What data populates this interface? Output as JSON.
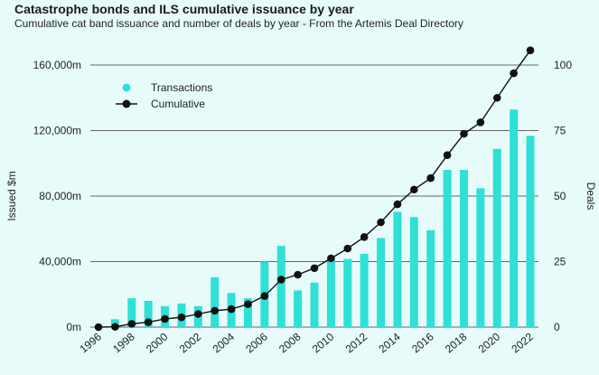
{
  "chart_data": {
    "type": "bar",
    "title": "Catastrophe bonds and ILS cumulative issuance by year",
    "subtitle": "Cumulative cat band issuance and number of deals by year - From the Artemis Deal Directory",
    "ylabel_left": "Issued $m",
    "ylabel_right": "Deals",
    "ylim_left": [
      0,
      160000
    ],
    "ylim_right": [
      0,
      100
    ],
    "yticks_left": [
      "0m",
      "40,000m",
      "80,000m",
      "120,000m",
      "160,000m"
    ],
    "yticks_right": [
      "0",
      "25",
      "50",
      "75",
      "100"
    ],
    "legend_position": "top-left",
    "grid": true,
    "x": [
      1996,
      1997,
      1998,
      1999,
      2000,
      2001,
      2002,
      2003,
      2004,
      2005,
      2006,
      2007,
      2008,
      2009,
      2010,
      2011,
      2012,
      2013,
      2014,
      2015,
      2016,
      2017,
      2018,
      2019,
      2020,
      2021,
      2022
    ],
    "xtick_labels": [
      "1996",
      "1998",
      "2000",
      "2002",
      "2004",
      "2006",
      "2008",
      "2010",
      "2012",
      "2014",
      "2016",
      "2018",
      "2020",
      "2022"
    ],
    "series": [
      {
        "name": "Transactions",
        "axis": "right",
        "kind": "bar",
        "color": "#2ee0d6",
        "values": [
          0,
          3,
          11,
          10,
          8,
          9,
          8,
          19,
          13,
          11,
          25,
          31,
          14,
          17,
          26,
          26,
          28,
          34,
          44,
          42,
          37,
          60,
          60,
          53,
          68,
          83,
          73
        ]
      },
      {
        "name": "Cumulative",
        "axis": "left",
        "kind": "line",
        "color": "#111111",
        "values": [
          0,
          200,
          2000,
          3000,
          5000,
          6000,
          8000,
          10000,
          11000,
          14000,
          19000,
          29000,
          32000,
          36000,
          42000,
          48000,
          55000,
          64000,
          75000,
          84000,
          91000,
          105000,
          118000,
          125000,
          140000,
          155000,
          169000
        ]
      }
    ]
  }
}
